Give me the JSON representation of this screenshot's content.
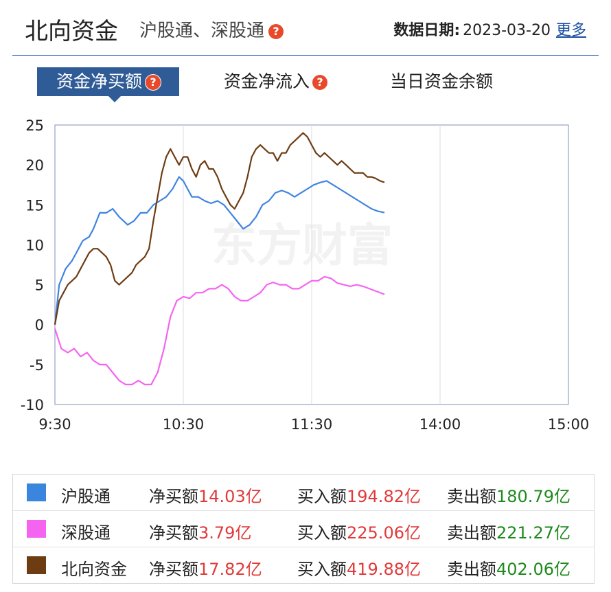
{
  "header": {
    "title": "北向资金",
    "subtitle": "沪股通、深股通",
    "help_glyph": "?",
    "date_label": "数据日期:",
    "date_value": "2023-03-20",
    "more_label": "更多"
  },
  "tabs": [
    {
      "label": "资金净买额",
      "active": true,
      "help": true
    },
    {
      "label": "资金净流入",
      "active": false,
      "help": true
    },
    {
      "label": "当日资金余额",
      "active": false,
      "help": false
    }
  ],
  "watermark": "东方财富",
  "chart_data": {
    "type": "line",
    "x_ticks": [
      "9:30",
      "10:30",
      "11:30",
      "14:00",
      "15:00"
    ],
    "x_range_minutes": [
      0,
      240
    ],
    "ylim": [
      -10,
      25
    ],
    "y_ticks": [
      25,
      20,
      15,
      10,
      5,
      0,
      -5,
      -10
    ],
    "grid": true,
    "series": [
      {
        "name": "沪股通",
        "color": "#3f84df",
        "points": [
          [
            0,
            0
          ],
          [
            2,
            5
          ],
          [
            5,
            7
          ],
          [
            8,
            8
          ],
          [
            10,
            9
          ],
          [
            13,
            10.5
          ],
          [
            16,
            11
          ],
          [
            18,
            12
          ],
          [
            21,
            14
          ],
          [
            24,
            14
          ],
          [
            27,
            14.5
          ],
          [
            30,
            13.5
          ],
          [
            34,
            12.5
          ],
          [
            37,
            13
          ],
          [
            40,
            14
          ],
          [
            43,
            14
          ],
          [
            46,
            15
          ],
          [
            49,
            15.5
          ],
          [
            52,
            16
          ],
          [
            55,
            17
          ],
          [
            58,
            18.5
          ],
          [
            60,
            18
          ],
          [
            62,
            17
          ],
          [
            64,
            16
          ],
          [
            67,
            16
          ],
          [
            70,
            15.5
          ],
          [
            73,
            15.2
          ],
          [
            76,
            15.5
          ],
          [
            79,
            15
          ],
          [
            82,
            14
          ],
          [
            85,
            13
          ],
          [
            88,
            12
          ],
          [
            91,
            12.5
          ],
          [
            94,
            13.5
          ],
          [
            97,
            15
          ],
          [
            100,
            15.5
          ],
          [
            103,
            16.5
          ],
          [
            106,
            16.8
          ],
          [
            109,
            16.5
          ],
          [
            112,
            16
          ],
          [
            115,
            16.5
          ],
          [
            118,
            17
          ],
          [
            121,
            17.5
          ],
          [
            124,
            17.8
          ],
          [
            127,
            18
          ],
          [
            130,
            17.5
          ],
          [
            133,
            17
          ],
          [
            136,
            16.5
          ],
          [
            139,
            16
          ],
          [
            142,
            15.5
          ],
          [
            145,
            15
          ],
          [
            148,
            14.5
          ],
          [
            151,
            14.2
          ],
          [
            154,
            14.03
          ]
        ]
      },
      {
        "name": "深股通",
        "color": "#f564f0",
        "points": [
          [
            0,
            -0.5
          ],
          [
            3,
            -3
          ],
          [
            6,
            -3.5
          ],
          [
            9,
            -3
          ],
          [
            12,
            -4
          ],
          [
            15,
            -3.5
          ],
          [
            18,
            -4.5
          ],
          [
            21,
            -5
          ],
          [
            24,
            -5
          ],
          [
            27,
            -6
          ],
          [
            30,
            -7
          ],
          [
            33,
            -7.5
          ],
          [
            36,
            -7.5
          ],
          [
            39,
            -7
          ],
          [
            42,
            -7.5
          ],
          [
            45,
            -7.5
          ],
          [
            48,
            -6
          ],
          [
            51,
            -3
          ],
          [
            54,
            1
          ],
          [
            57,
            3
          ],
          [
            60,
            3.5
          ],
          [
            63,
            3.3
          ],
          [
            66,
            4
          ],
          [
            69,
            4
          ],
          [
            72,
            4.5
          ],
          [
            75,
            4.5
          ],
          [
            78,
            5
          ],
          [
            81,
            4.5
          ],
          [
            84,
            3.5
          ],
          [
            87,
            3
          ],
          [
            90,
            3
          ],
          [
            93,
            3.5
          ],
          [
            96,
            4
          ],
          [
            99,
            5
          ],
          [
            102,
            5.3
          ],
          [
            105,
            5
          ],
          [
            108,
            5
          ],
          [
            111,
            4.5
          ],
          [
            114,
            4.5
          ],
          [
            117,
            5
          ],
          [
            120,
            5.5
          ],
          [
            123,
            5.5
          ],
          [
            126,
            6
          ],
          [
            129,
            5.8
          ],
          [
            132,
            5.2
          ],
          [
            135,
            5
          ],
          [
            138,
            4.8
          ],
          [
            141,
            5
          ],
          [
            144,
            4.8
          ],
          [
            147,
            4.5
          ],
          [
            150,
            4.2
          ],
          [
            154,
            3.79
          ]
        ]
      },
      {
        "name": "北向资金",
        "color": "#6d3c12",
        "points": [
          [
            0,
            0
          ],
          [
            2,
            3
          ],
          [
            4,
            4
          ],
          [
            6,
            5
          ],
          [
            8,
            5.5
          ],
          [
            10,
            6
          ],
          [
            12,
            7
          ],
          [
            14,
            8
          ],
          [
            16,
            9
          ],
          [
            18,
            9.5
          ],
          [
            20,
            9.5
          ],
          [
            22,
            9
          ],
          [
            24,
            8.5
          ],
          [
            26,
            7.5
          ],
          [
            28,
            5.5
          ],
          [
            30,
            5
          ],
          [
            32,
            5.5
          ],
          [
            34,
            6
          ],
          [
            36,
            6.5
          ],
          [
            38,
            7.5
          ],
          [
            40,
            8
          ],
          [
            42,
            8.5
          ],
          [
            44,
            9.5
          ],
          [
            46,
            13
          ],
          [
            48,
            16
          ],
          [
            50,
            19
          ],
          [
            52,
            21
          ],
          [
            54,
            22
          ],
          [
            56,
            21
          ],
          [
            58,
            20
          ],
          [
            60,
            21
          ],
          [
            62,
            21
          ],
          [
            64,
            19.5
          ],
          [
            66,
            18.5
          ],
          [
            68,
            20
          ],
          [
            70,
            20.5
          ],
          [
            72,
            19.5
          ],
          [
            74,
            19.5
          ],
          [
            76,
            18.5
          ],
          [
            78,
            17
          ],
          [
            80,
            16
          ],
          [
            82,
            15
          ],
          [
            84,
            14.5
          ],
          [
            86,
            15.5
          ],
          [
            88,
            16.5
          ],
          [
            90,
            18.5
          ],
          [
            92,
            21
          ],
          [
            94,
            22
          ],
          [
            96,
            22.5
          ],
          [
            98,
            22
          ],
          [
            100,
            21.5
          ],
          [
            102,
            21.5
          ],
          [
            104,
            20.5
          ],
          [
            106,
            21.5
          ],
          [
            108,
            21.5
          ],
          [
            110,
            22.5
          ],
          [
            112,
            23
          ],
          [
            114,
            23.5
          ],
          [
            116,
            24
          ],
          [
            118,
            23.5
          ],
          [
            120,
            22.5
          ],
          [
            122,
            21.5
          ],
          [
            124,
            21
          ],
          [
            126,
            21.5
          ],
          [
            128,
            21
          ],
          [
            130,
            20.5
          ],
          [
            132,
            20
          ],
          [
            134,
            20.5
          ],
          [
            136,
            20
          ],
          [
            138,
            19.5
          ],
          [
            140,
            19
          ],
          [
            142,
            19
          ],
          [
            144,
            19
          ],
          [
            146,
            18.5
          ],
          [
            148,
            18.5
          ],
          [
            150,
            18.3
          ],
          [
            152,
            18
          ],
          [
            154,
            17.82
          ]
        ]
      }
    ]
  },
  "legend": [
    {
      "name": "沪股通",
      "color": "#3a86de",
      "net_label": "净买额",
      "net_value": "14.03亿",
      "buy_label": "买入额",
      "buy_value": "194.82亿",
      "sell_label": "卖出额",
      "sell_value": "180.79亿"
    },
    {
      "name": "深股通",
      "color": "#f564f0",
      "net_label": "净买额",
      "net_value": "3.79亿",
      "buy_label": "买入额",
      "buy_value": "225.06亿",
      "sell_label": "卖出额",
      "sell_value": "221.27亿"
    },
    {
      "name": "北向资金",
      "color": "#6d3c12",
      "net_label": "净买额",
      "net_value": "17.82亿",
      "buy_label": "买入额",
      "buy_value": "419.88亿",
      "sell_label": "卖出额",
      "sell_value": "402.06亿"
    }
  ]
}
